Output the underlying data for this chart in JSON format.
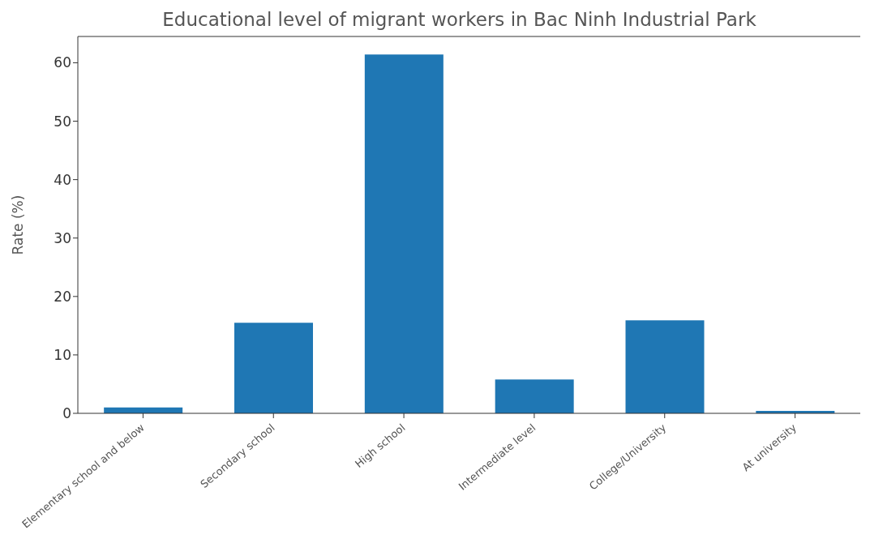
{
  "chart_data": {
    "type": "bar",
    "title": "Educational level of migrant workers in Bac Ninh Industrial Park",
    "ylabel": "Rate (%)",
    "categories": [
      "Elementary school and below",
      "Secondary school",
      "High school",
      "Intermediate level",
      "College/University",
      "At university"
    ],
    "values": [
      1.0,
      15.5,
      61.4,
      5.8,
      15.9,
      0.4
    ],
    "color": "#1f77b4",
    "ylim": [
      0,
      64.5
    ],
    "yticks": [
      0,
      10,
      20,
      30,
      40,
      50,
      60
    ],
    "grid": false
  }
}
